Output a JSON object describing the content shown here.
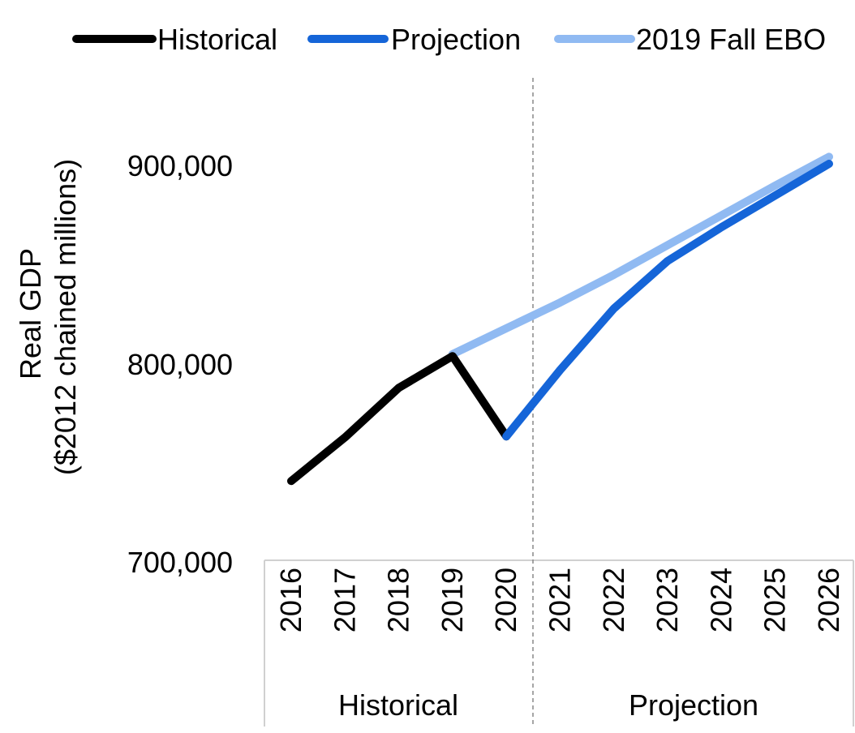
{
  "chart_data": {
    "type": "line",
    "ylabel_line1": "Real GDP",
    "ylabel_line2": "($2012 chained millions)",
    "ylim": [
      700000,
      900000
    ],
    "y_ticks": [
      "700,000",
      "800,000",
      "900,000"
    ],
    "categories": [
      "2016",
      "2017",
      "2018",
      "2019",
      "2020",
      "2021",
      "2022",
      "2023",
      "2024",
      "2025",
      "2026"
    ],
    "groups": [
      {
        "label": "Historical",
        "from": 0,
        "to": 4
      },
      {
        "label": "Projection",
        "from": 5,
        "to": 10
      }
    ],
    "series": [
      {
        "name": "Historical",
        "color": "#000000",
        "values": [
          740000,
          762000,
          787000,
          803000,
          762500,
          null,
          null,
          null,
          null,
          null,
          null
        ]
      },
      {
        "name": "Projection",
        "color": "#1565D8",
        "values": [
          null,
          null,
          null,
          null,
          762500,
          796000,
          827000,
          851000,
          868000,
          884000,
          900000
        ]
      },
      {
        "name": "2019 Fall EBO",
        "color": "#90BAF2",
        "values": [
          null,
          null,
          null,
          804000,
          817000,
          830000,
          844000,
          859000,
          874000,
          889000,
          903500
        ]
      }
    ],
    "legend_position": "top",
    "grid": false
  }
}
